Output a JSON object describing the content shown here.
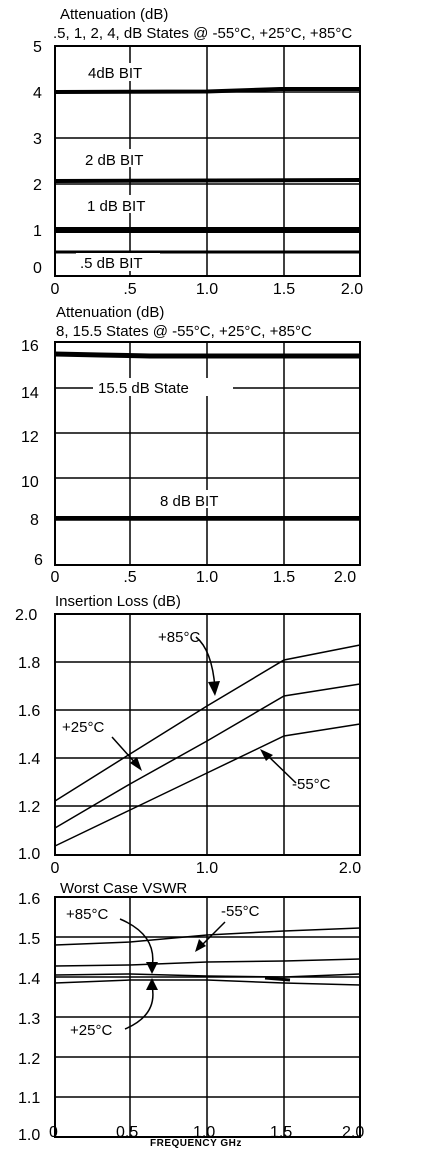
{
  "chart_data": [
    {
      "type": "line",
      "title": "Attenuation (dB)",
      "subtitle": ".5, 1, 2, 4, dB States @ -55°C, +25°C, +85°C",
      "xlim": [
        0,
        2.0
      ],
      "ylim": [
        0,
        5
      ],
      "xticks": [
        "0",
        ".5",
        "1.0",
        "1.5",
        "2.0"
      ],
      "yticks": [
        "0",
        "1",
        "2",
        "3",
        "4",
        "5"
      ],
      "grid": true,
      "series": [
        {
          "name": "4dB BIT",
          "x": [
            0,
            1.0,
            2.0
          ],
          "y": [
            4.0,
            4.02,
            4.05
          ]
        },
        {
          "name": "2 dB BIT",
          "x": [
            0,
            1.0,
            2.0
          ],
          "y": [
            2.05,
            2.06,
            2.07
          ]
        },
        {
          "name": "1 dB BIT",
          "x": [
            0,
            1.0,
            2.0
          ],
          "y": [
            1.0,
            1.0,
            1.0
          ]
        },
        {
          "name": ".5 dB BIT",
          "x": [
            0,
            1.0,
            2.0
          ],
          "y": [
            0.52,
            0.52,
            0.52
          ]
        }
      ]
    },
    {
      "type": "line",
      "title": "Attenuation (dB)",
      "subtitle": "8, 15.5 States @ -55°C, +25°C, +85°C",
      "xlim": [
        0,
        2.0
      ],
      "ylim": [
        6,
        16
      ],
      "xticks": [
        "0",
        ".5",
        "1.0",
        "1.5",
        "2.0"
      ],
      "yticks": [
        "6",
        "8",
        "10",
        "12",
        "14",
        "16"
      ],
      "grid": true,
      "series": [
        {
          "name": "15.5 dB State",
          "x": [
            0,
            1.0,
            2.0
          ],
          "y": [
            15.5,
            15.45,
            15.45
          ]
        },
        {
          "name": "8 dB BIT",
          "x": [
            0,
            1.0,
            2.0
          ],
          "y": [
            8.1,
            8.1,
            8.1
          ]
        }
      ],
      "annotations": [
        "15.5 dB State",
        "8 dB BIT"
      ]
    },
    {
      "type": "line",
      "title": "Insertion Loss (dB)",
      "xlim": [
        0,
        2.0
      ],
      "ylim": [
        1.0,
        2.0
      ],
      "xticks": [
        "0",
        "1.0",
        "2.0"
      ],
      "yticks": [
        "1.0",
        "1.2",
        "1.4",
        "1.6",
        "1.8",
        "2.0"
      ],
      "grid": true,
      "series": [
        {
          "name": "+85°C",
          "x": [
            0,
            0.5,
            1.0,
            1.5,
            2.0
          ],
          "y": [
            1.22,
            1.41,
            1.61,
            1.8,
            1.87
          ]
        },
        {
          "name": "+25°C",
          "x": [
            0,
            0.5,
            1.0,
            1.5,
            2.0
          ],
          "y": [
            1.12,
            1.3,
            1.48,
            1.65,
            1.7
          ]
        },
        {
          "name": "-55°C",
          "x": [
            0,
            0.5,
            1.0,
            1.5,
            2.0
          ],
          "y": [
            1.04,
            1.19,
            1.35,
            1.5,
            1.55
          ]
        }
      ],
      "annotations": [
        "+85°C",
        "+25°C",
        "-55°C"
      ]
    },
    {
      "type": "line",
      "title": "Worst Case VSWR",
      "xlabel": "FREQUENCY GHz",
      "xlim": [
        0,
        2.0
      ],
      "ylim": [
        1.0,
        1.6
      ],
      "xticks": [
        "0",
        "0.5",
        "1.0",
        "1.5",
        "2.0"
      ],
      "yticks": [
        "1.0",
        "1.1",
        "1.2",
        "1.3",
        "1.4",
        "1.5",
        "1.6"
      ],
      "grid": true,
      "series": [
        {
          "name": "-55°C",
          "x": [
            0,
            0.5,
            1.0,
            1.5,
            2.0
          ],
          "y": [
            1.43,
            1.44,
            1.46,
            1.47,
            1.48
          ]
        },
        {
          "name": "+85°C",
          "x": [
            0,
            0.5,
            1.0,
            1.5,
            2.0
          ],
          "y": [
            1.38,
            1.38,
            1.39,
            1.39,
            1.4
          ]
        },
        {
          "name": "+25°C a",
          "x": [
            0,
            0.5,
            1.0,
            1.5,
            2.0
          ],
          "y": [
            1.36,
            1.36,
            1.35,
            1.35,
            1.36
          ]
        },
        {
          "name": "+25°C b",
          "x": [
            0,
            0.5,
            1.0,
            1.5,
            2.0
          ],
          "y": [
            1.34,
            1.35,
            1.35,
            1.34,
            1.33
          ]
        }
      ],
      "annotations": [
        "+85°C",
        "-55°C",
        "+25°C"
      ]
    }
  ]
}
